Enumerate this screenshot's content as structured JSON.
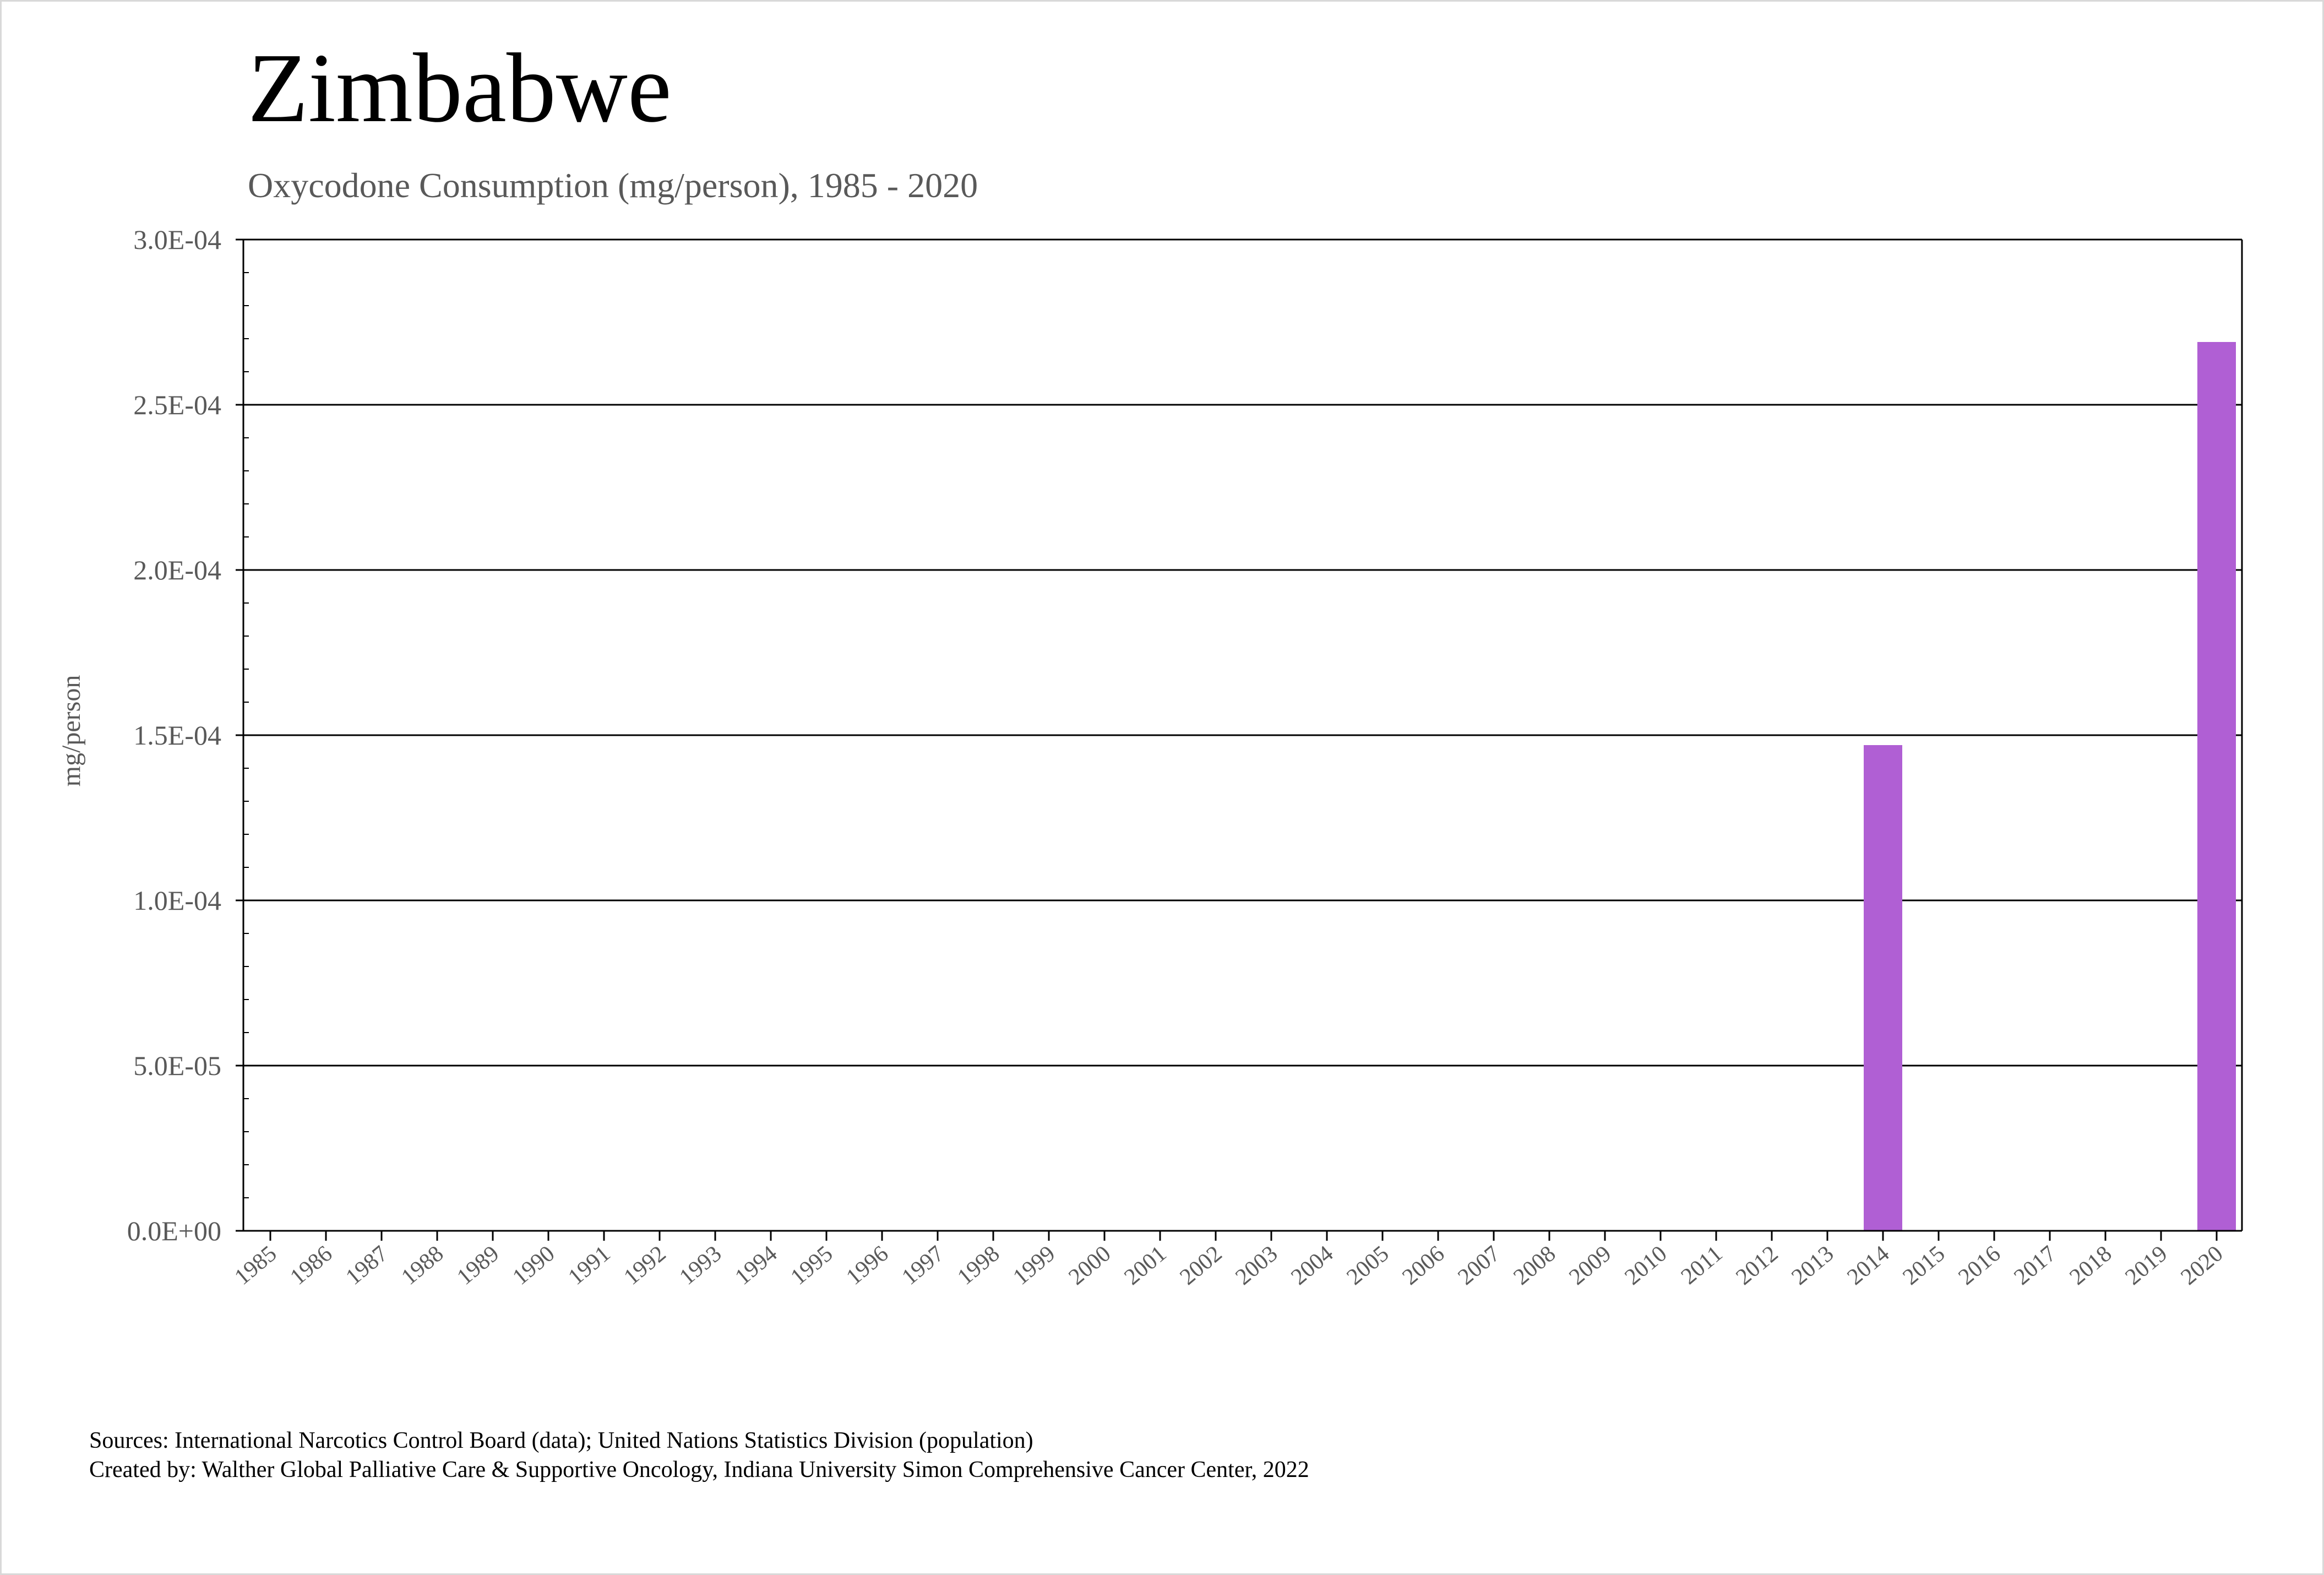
{
  "chart_data": {
    "type": "bar",
    "title": "Zimbabwe",
    "subtitle": "Oxycodone Consumption (mg/person), 1985 - 2020",
    "ylabel": "mg/person",
    "xlabel": "",
    "ylim": [
      0,
      0.0003
    ],
    "yticks": [
      "0.0E+00",
      "5.0E-05",
      "1.0E-04",
      "1.5E-04",
      "2.0E-04",
      "2.5E-04",
      "3.0E-04"
    ],
    "grid": true,
    "color": "#b05fd4",
    "categories": [
      "1985",
      "1986",
      "1987",
      "1988",
      "1989",
      "1990",
      "1991",
      "1992",
      "1993",
      "1994",
      "1995",
      "1996",
      "1997",
      "1998",
      "1999",
      "2000",
      "2001",
      "2002",
      "2003",
      "2004",
      "2005",
      "2006",
      "2007",
      "2008",
      "2009",
      "2010",
      "2011",
      "2012",
      "2013",
      "2014",
      "2015",
      "2016",
      "2017",
      "2018",
      "2019",
      "2020"
    ],
    "values": [
      0,
      0,
      0,
      0,
      0,
      0,
      0,
      0,
      0,
      0,
      0,
      0,
      0,
      0,
      0,
      0,
      0,
      0,
      0,
      0,
      0,
      0,
      0,
      0,
      0,
      0,
      0,
      0,
      0,
      0.000147,
      0,
      0,
      0,
      0,
      0,
      0.000269
    ]
  },
  "footer": {
    "sources": "Sources: International Narcotics Control Board (data); United Nations Statistics Division (population)",
    "created_by": "Created by: Walther Global Palliative Care & Supportive Oncology, Indiana University Simon Comprehensive Cancer Center, 2022"
  }
}
